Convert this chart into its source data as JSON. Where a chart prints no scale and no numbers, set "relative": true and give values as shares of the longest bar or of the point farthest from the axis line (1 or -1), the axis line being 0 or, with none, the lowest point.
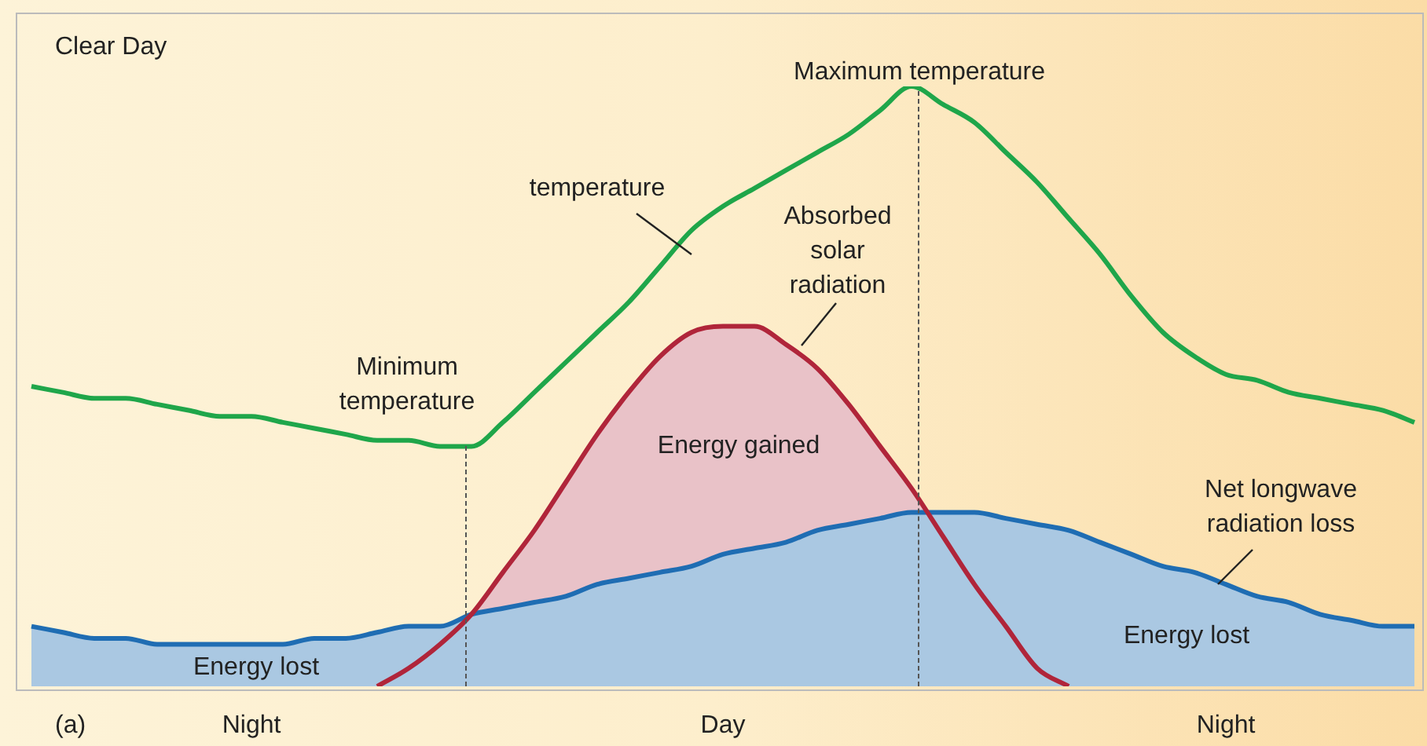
{
  "chart_data": {
    "type": "line",
    "title": "Clear Day",
    "relative": true,
    "legend": false,
    "categories": [
      null,
      null,
      null,
      null,
      null,
      null,
      null,
      "Night",
      null,
      null,
      null,
      null,
      null,
      null,
      null,
      null,
      null,
      null,
      null,
      null,
      null,
      null,
      "Day",
      null,
      null,
      null,
      null,
      null,
      null,
      null,
      null,
      null,
      null,
      null,
      null,
      null,
      null,
      null,
      "Night",
      null,
      null,
      null,
      null,
      null,
      null
    ],
    "series": [
      {
        "name": "temperature",
        "color": "#1fa64a",
        "values": [
          0.5,
          0.49,
          0.48,
          0.48,
          0.47,
          0.46,
          0.45,
          0.45,
          0.44,
          0.43,
          0.42,
          0.41,
          0.41,
          0.4,
          0.4,
          0.44,
          0.49,
          0.54,
          0.59,
          0.64,
          0.7,
          0.76,
          0.8,
          0.83,
          0.86,
          0.89,
          0.92,
          0.96,
          1,
          0.97,
          0.94,
          0.89,
          0.84,
          0.78,
          0.72,
          0.65,
          0.59,
          0.55,
          0.52,
          0.51,
          0.49,
          0.48,
          0.47,
          0.46,
          0.44
        ]
      },
      {
        "name": "Net longwave radiation loss",
        "type": "area",
        "color": "#1f6db3",
        "values": [
          0.1,
          0.09,
          0.08,
          0.08,
          0.07,
          0.07,
          0.07,
          0.07,
          0.07,
          0.08,
          0.08,
          0.09,
          0.1,
          0.1,
          0.12,
          0.13,
          0.14,
          0.15,
          0.17,
          0.18,
          0.19,
          0.2,
          0.22,
          0.23,
          0.24,
          0.26,
          0.27,
          0.28,
          0.29,
          0.29,
          0.29,
          0.28,
          0.27,
          0.26,
          0.24,
          0.22,
          0.2,
          0.19,
          0.17,
          0.15,
          0.14,
          0.12,
          0.11,
          0.1,
          0.1
        ]
      },
      {
        "name": "Absorbed solar radiation",
        "type": "area",
        "color": "#b0253a",
        "values": [
          null,
          null,
          null,
          null,
          null,
          null,
          null,
          null,
          null,
          null,
          null,
          0,
          0.03,
          0.07,
          0.12,
          0.19,
          0.26,
          0.34,
          0.42,
          0.49,
          0.55,
          0.59,
          0.6,
          0.6,
          0.57,
          0.53,
          0.47,
          0.4,
          0.33,
          0.25,
          0.17,
          0.1,
          0.03,
          0,
          null,
          null,
          null,
          null,
          null,
          null,
          null,
          null,
          null,
          null,
          null
        ]
      }
    ],
    "annotations": [
      "Minimum temperature",
      "Maximum temperature",
      "Energy gained",
      "Energy lost",
      "Energy lost",
      "(a)"
    ]
  }
}
